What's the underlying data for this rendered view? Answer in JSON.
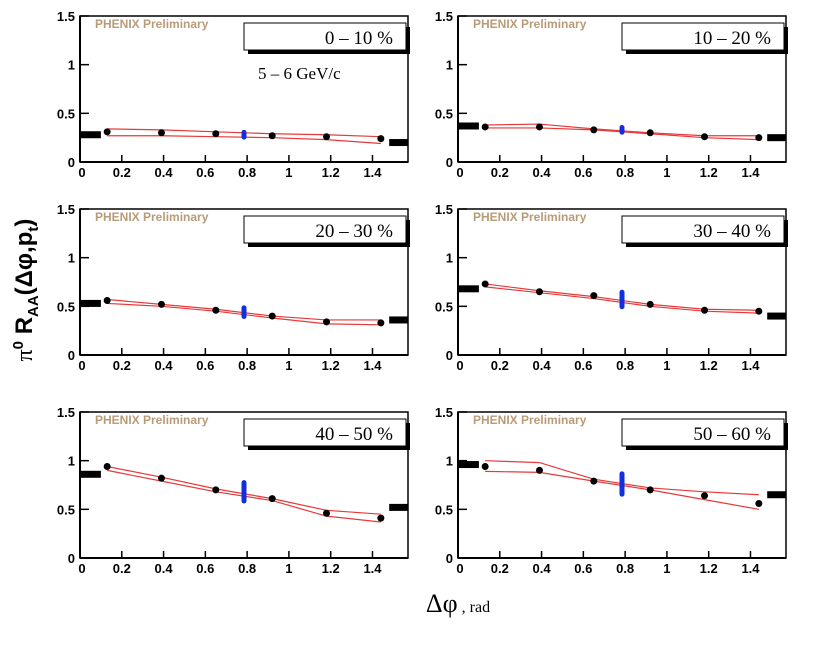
{
  "y_label_parts": [
    "π",
    "0",
    " R",
    "AA",
    "(Δφ,p",
    "t",
    ")"
  ],
  "x_label_parts": [
    "Δφ",
    " , rad"
  ],
  "chart_data": [
    {
      "type": "scatter",
      "label": "0 – 10 %",
      "annotation": "PHENIX Preliminary",
      "subtitle": "5 – 6 GeV/c",
      "x": [
        0.13,
        0.39,
        0.65,
        0.92,
        1.18,
        1.44
      ],
      "values": [
        0.31,
        0.3,
        0.29,
        0.27,
        0.26,
        0.24
      ],
      "band_upper": [
        0.34,
        0.33,
        0.31,
        0.29,
        0.28,
        0.26
      ],
      "band_lower": [
        0.27,
        0.27,
        0.26,
        0.25,
        0.23,
        0.19
      ],
      "band_color": "#e8393a",
      "color": "#000000",
      "error_color": "#1030e0",
      "marker_error": {
        "x": 0.785,
        "value": 0.28,
        "error": 0.05
      },
      "left_ref": 0.28,
      "right_ref": 0.2,
      "xlim": [
        0,
        1.57
      ],
      "ylim": [
        0,
        1.5
      ],
      "xticks": [
        0,
        0.2,
        0.4,
        0.6,
        0.8,
        1,
        1.2,
        1.4
      ],
      "yticks": [
        0,
        0.5,
        1,
        1.5
      ]
    },
    {
      "type": "scatter",
      "label": "10 – 20 %",
      "annotation": "PHENIX Preliminary",
      "x": [
        0.13,
        0.39,
        0.65,
        0.92,
        1.18,
        1.44
      ],
      "values": [
        0.36,
        0.36,
        0.33,
        0.3,
        0.26,
        0.25
      ],
      "band_upper": [
        0.38,
        0.39,
        0.34,
        0.3,
        0.27,
        0.27
      ],
      "band_lower": [
        0.35,
        0.35,
        0.33,
        0.29,
        0.25,
        0.23
      ],
      "band_color": "#e8393a",
      "color": "#000000",
      "error_color": "#1030e0",
      "marker_error": {
        "x": 0.785,
        "value": 0.33,
        "error": 0.05
      },
      "left_ref": 0.37,
      "right_ref": 0.25,
      "xlim": [
        0,
        1.57
      ],
      "ylim": [
        0,
        1.5
      ],
      "xticks": [
        0,
        0.2,
        0.4,
        0.6,
        0.8,
        1,
        1.2,
        1.4
      ],
      "yticks": [
        0,
        0.5,
        1,
        1.5
      ]
    },
    {
      "type": "scatter",
      "label": "20 – 30 %",
      "annotation": "PHENIX Preliminary",
      "x": [
        0.13,
        0.39,
        0.65,
        0.92,
        1.18,
        1.44
      ],
      "values": [
        0.56,
        0.52,
        0.46,
        0.4,
        0.34,
        0.33
      ],
      "band_upper": [
        0.57,
        0.52,
        0.47,
        0.4,
        0.36,
        0.36
      ],
      "band_lower": [
        0.53,
        0.5,
        0.45,
        0.38,
        0.32,
        0.31
      ],
      "band_color": "#e8393a",
      "color": "#000000",
      "error_color": "#1030e0",
      "marker_error": {
        "x": 0.785,
        "value": 0.44,
        "error": 0.07
      },
      "left_ref": 0.53,
      "right_ref": 0.36,
      "xlim": [
        0,
        1.57
      ],
      "ylim": [
        0,
        1.5
      ],
      "xticks": [
        0,
        0.2,
        0.4,
        0.6,
        0.8,
        1,
        1.2,
        1.4
      ],
      "yticks": [
        0,
        0.5,
        1,
        1.5
      ]
    },
    {
      "type": "scatter",
      "label": "30 – 40 %",
      "annotation": "PHENIX Preliminary",
      "x": [
        0.13,
        0.39,
        0.65,
        0.92,
        1.18,
        1.44
      ],
      "values": [
        0.73,
        0.65,
        0.61,
        0.52,
        0.46,
        0.45
      ],
      "band_upper": [
        0.73,
        0.66,
        0.6,
        0.52,
        0.47,
        0.46
      ],
      "band_lower": [
        0.7,
        0.64,
        0.58,
        0.5,
        0.45,
        0.43
      ],
      "band_color": "#e8393a",
      "color": "#000000",
      "error_color": "#1030e0",
      "marker_error": {
        "x": 0.785,
        "value": 0.57,
        "error": 0.1
      },
      "left_ref": 0.68,
      "right_ref": 0.4,
      "xlim": [
        0,
        1.57
      ],
      "ylim": [
        0,
        1.5
      ],
      "xticks": [
        0,
        0.2,
        0.4,
        0.6,
        0.8,
        1,
        1.2,
        1.4
      ],
      "yticks": [
        0,
        0.5,
        1,
        1.5
      ]
    },
    {
      "type": "scatter",
      "label": "40 – 50 %",
      "annotation": "PHENIX Preliminary",
      "x": [
        0.13,
        0.39,
        0.65,
        0.92,
        1.18,
        1.44
      ],
      "values": [
        0.94,
        0.82,
        0.7,
        0.61,
        0.46,
        0.41
      ],
      "band_upper": [
        0.94,
        0.83,
        0.71,
        0.61,
        0.49,
        0.45
      ],
      "band_lower": [
        0.9,
        0.79,
        0.68,
        0.59,
        0.43,
        0.37
      ],
      "band_color": "#e8393a",
      "color": "#000000",
      "error_color": "#1030e0",
      "marker_error": {
        "x": 0.785,
        "value": 0.68,
        "error": 0.12
      },
      "left_ref": 0.86,
      "right_ref": 0.52,
      "xlim": [
        0,
        1.57
      ],
      "ylim": [
        0,
        1.5
      ],
      "xticks": [
        0,
        0.2,
        0.4,
        0.6,
        0.8,
        1,
        1.2,
        1.4
      ],
      "yticks": [
        0,
        0.5,
        1,
        1.5
      ]
    },
    {
      "type": "scatter",
      "label": "50 – 60 %",
      "annotation": "PHENIX Preliminary",
      "x": [
        0.13,
        0.39,
        0.65,
        0.92,
        1.18,
        1.44
      ],
      "values": [
        0.94,
        0.9,
        0.79,
        0.7,
        0.64,
        0.56
      ],
      "band_upper": [
        1.0,
        0.98,
        0.81,
        0.72,
        0.68,
        0.65
      ],
      "band_lower": [
        0.89,
        0.88,
        0.79,
        0.7,
        0.6,
        0.5
      ],
      "band_color": "#e8393a",
      "color": "#000000",
      "error_color": "#1030e0",
      "marker_error": {
        "x": 0.785,
        "value": 0.76,
        "error": 0.13
      },
      "left_ref": 0.96,
      "right_ref": 0.65,
      "xlim": [
        0,
        1.57
      ],
      "ylim": [
        0,
        1.5
      ],
      "xticks": [
        0,
        0.2,
        0.4,
        0.6,
        0.8,
        1,
        1.2,
        1.4
      ],
      "yticks": [
        0,
        0.5,
        1,
        1.5
      ]
    }
  ]
}
